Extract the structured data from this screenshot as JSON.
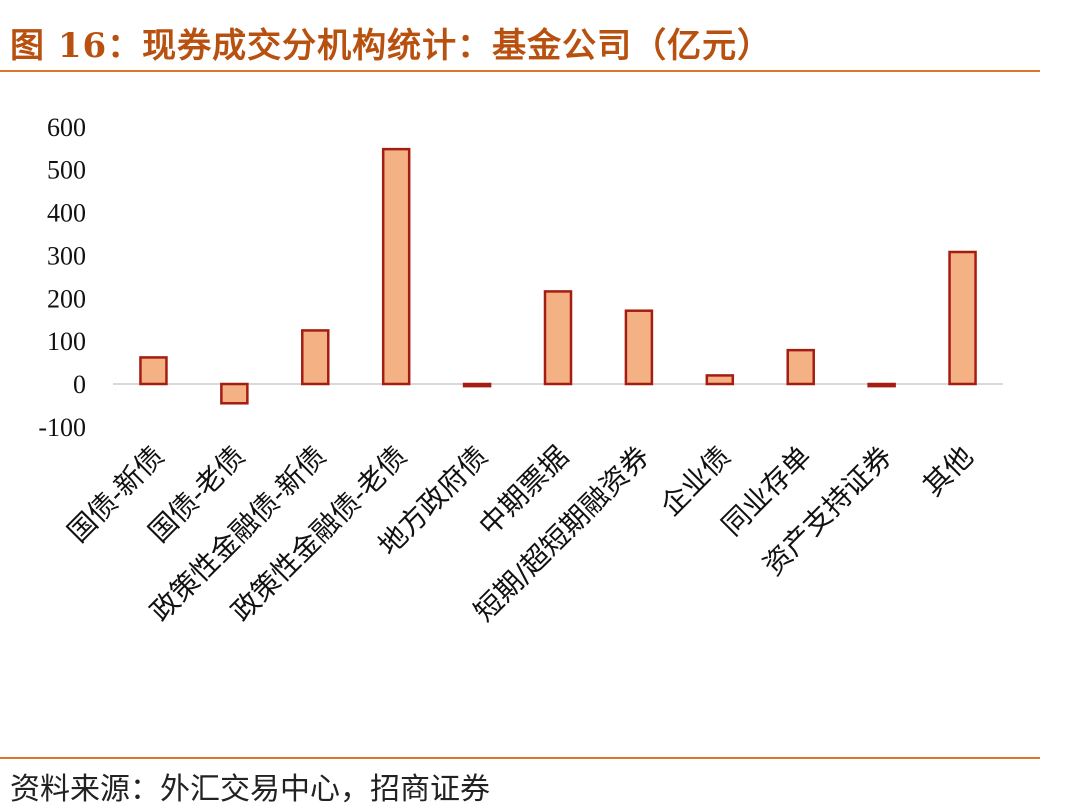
{
  "figure": {
    "title": "图 16：现券成交分机构统计：基金公司（亿元）",
    "source": "资料来源：外汇交易中心，招商证券"
  },
  "chart_data": {
    "type": "bar",
    "title": "",
    "xlabel": "",
    "ylabel": "",
    "categories": [
      "国债-新债",
      "国债-老债",
      "政策性金融债-新债",
      "政策性金融债-老债",
      "地方政府债",
      "中期票据",
      "短期/超短期融资券",
      "企业债",
      "同业存单",
      "资产支持证券",
      "其他"
    ],
    "values": [
      62,
      -45,
      125,
      548,
      -5,
      216,
      171,
      20,
      79,
      -5,
      308
    ],
    "ylim": [
      -100,
      600
    ],
    "yticks": [
      -100,
      0,
      100,
      200,
      300,
      400,
      500,
      600
    ],
    "grid": false,
    "legend": "none",
    "bar_fill": "#F4B183",
    "bar_stroke": "#A51D12",
    "zero_line_color": "#D9D9D9"
  }
}
